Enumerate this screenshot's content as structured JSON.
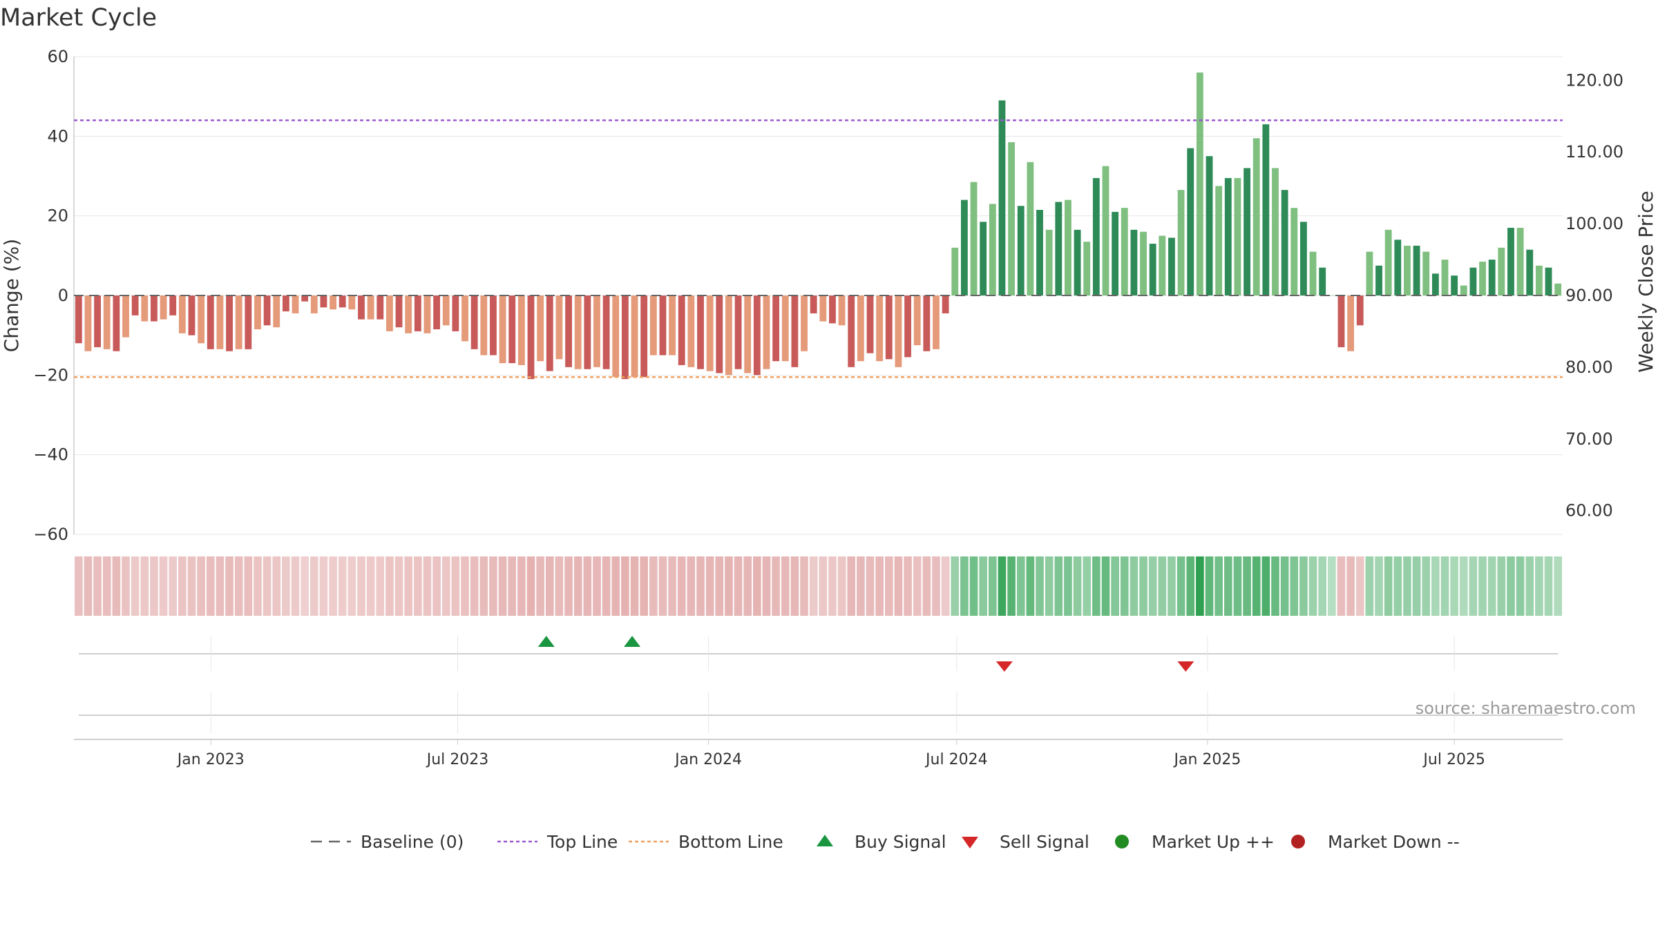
{
  "title": "Market Cycle",
  "source": "source: sharemaestro.com",
  "colors": {
    "up_dark": "#2e8b57",
    "up_light": "#7fbf7f",
    "down_dark": "#c85a5a",
    "down_light": "#e59a7a",
    "top_line": "#9b59d0",
    "bottom_line": "#f0a060",
    "baseline": "#666666",
    "buy": "#1a9641",
    "sell": "#d62728",
    "market_up": "#228b22",
    "market_down": "#b22222",
    "grid": "#e6e6e6"
  },
  "chart_data": {
    "type": "bar",
    "title": "Market Cycle",
    "ylabel": "Change (%)",
    "y2label": "Weekly Close Price",
    "ylim": [
      -60,
      60
    ],
    "yticks": [
      "60",
      "40",
      "20",
      "0",
      "−20",
      "−40",
      "−60"
    ],
    "y2lim": [
      56.7,
      123.3
    ],
    "y2ticks": [
      "120.00",
      "110.00",
      "100.00",
      "90.00",
      "80.00",
      "70.00",
      "60.00"
    ],
    "top_line": 44,
    "bottom_line": -20.5,
    "x_start": "2022-09-26",
    "x_end": "2025-09-15",
    "xticks": [
      {
        "date": "2023-01-01",
        "label": "Jan 2023"
      },
      {
        "date": "2023-07-01",
        "label": "Jul 2023"
      },
      {
        "date": "2024-01-01",
        "label": "Jan 2024"
      },
      {
        "date": "2024-07-01",
        "label": "Jul 2024"
      },
      {
        "date": "2025-01-01",
        "label": "Jan 2025"
      },
      {
        "date": "2025-07-01",
        "label": "Jul 2025"
      }
    ],
    "weekly_change": [
      -12,
      -14,
      -13,
      -13.5,
      -14,
      -10.5,
      -5,
      -6.5,
      -6.5,
      -6,
      -5,
      -9.5,
      -10,
      -12,
      -13.5,
      -13.5,
      -14,
      -13.5,
      -13.5,
      -8.5,
      -7.5,
      -8,
      -4,
      -4.5,
      -1.5,
      -4.5,
      -3,
      -3.5,
      -3,
      -3.5,
      -6,
      -6,
      -6,
      -9,
      -8,
      -9.5,
      -9,
      -9.5,
      -8.5,
      -7.5,
      -9,
      -11.5,
      -13.5,
      -15,
      -15,
      -17,
      -17,
      -17.5,
      -21,
      -16.5,
      -19,
      -16,
      -18,
      -18.5,
      -18.5,
      -18,
      -18.5,
      -20.5,
      -21,
      -20.5,
      -20.5,
      -15,
      -15,
      -15,
      -17.5,
      -18,
      -18.5,
      -19,
      -19.5,
      -20,
      -18.5,
      -19.5,
      -20,
      -18.5,
      -16.5,
      -16.5,
      -18,
      -14,
      -4.5,
      -6.5,
      -7,
      -7.5,
      -18,
      -16.5,
      -14.5,
      -16.5,
      -16,
      -18,
      -15.5,
      -12.5,
      -14,
      -13.5,
      -4.5,
      12,
      24,
      28.5,
      18.5,
      23,
      49,
      38.5,
      22.5,
      33.5,
      21.5,
      16.5,
      23.5,
      24,
      16.5,
      13.5,
      29.5,
      32.5,
      21,
      22,
      16.5,
      16,
      13,
      15,
      14.5,
      26.5,
      37,
      56,
      35,
      27.5,
      29.5,
      29.5,
      32,
      39.5,
      43,
      32,
      26.5,
      22,
      18.5,
      11,
      7,
      0,
      -13,
      -14,
      -7.5,
      11,
      7.5,
      16.5,
      14,
      12.5,
      12.5,
      11,
      5.5,
      9,
      5,
      2.5,
      7,
      8.5,
      9,
      12,
      17,
      17,
      11.5,
      7.5,
      7,
      3
    ],
    "buy_signals": [
      "2023-09-04",
      "2023-11-06"
    ],
    "sell_signals": [
      "2024-08-05",
      "2024-12-16"
    ],
    "legend": [
      {
        "key": "baseline",
        "label": "Baseline (0)"
      },
      {
        "key": "top_line",
        "label": "Top Line"
      },
      {
        "key": "bottom_line",
        "label": "Bottom Line"
      },
      {
        "key": "buy",
        "label": "Buy Signal"
      },
      {
        "key": "sell",
        "label": "Sell Signal"
      },
      {
        "key": "market_up",
        "label": "Market Up ++"
      },
      {
        "key": "market_down",
        "label": "Market Down --"
      }
    ],
    "legend_placement": "bottom",
    "grid": true
  }
}
